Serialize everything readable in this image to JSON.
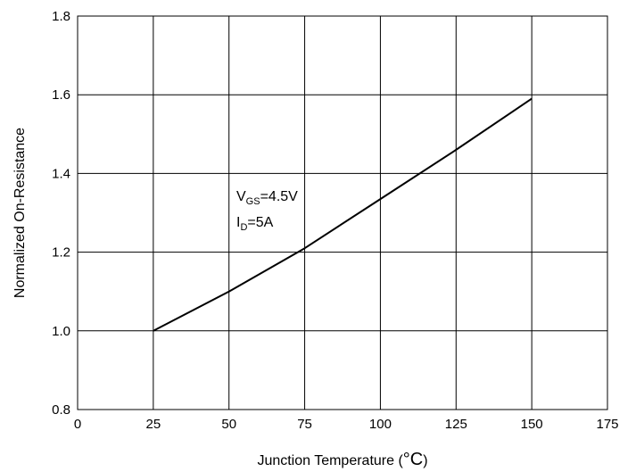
{
  "chart_data": {
    "type": "line",
    "title": "",
    "xlabel_prefix": "Junction Temperature (",
    "xlabel_unit": "°C",
    "xlabel_suffix": ")",
    "ylabel": "Normalized On-Resistance",
    "xlim": [
      0,
      175
    ],
    "ylim": [
      0.8,
      1.8
    ],
    "x_ticks": [
      0,
      25,
      50,
      75,
      100,
      125,
      150,
      175
    ],
    "x_tick_labels": [
      "0",
      "25",
      "50",
      "75",
      "100",
      "125",
      "150",
      "175"
    ],
    "y_ticks": [
      0.8,
      1.0,
      1.2,
      1.4,
      1.6,
      1.8
    ],
    "y_tick_labels": [
      "0.8",
      "1.0",
      "1.2",
      "1.4",
      "1.6",
      "1.8"
    ],
    "grid": true,
    "series": [
      {
        "x": [
          25,
          50,
          75,
          100,
          125,
          150
        ],
        "y": [
          1.0,
          1.1,
          1.21,
          1.335,
          1.46,
          1.59
        ]
      }
    ],
    "annotations": [
      {
        "prefix": "V",
        "sub": "GS",
        "suffix": "=4.5V"
      },
      {
        "prefix": "I",
        "sub": "D",
        "suffix": "=5A"
      }
    ],
    "colors": {
      "line": "#000000",
      "grid": "#000000",
      "background": "#ffffff"
    }
  }
}
